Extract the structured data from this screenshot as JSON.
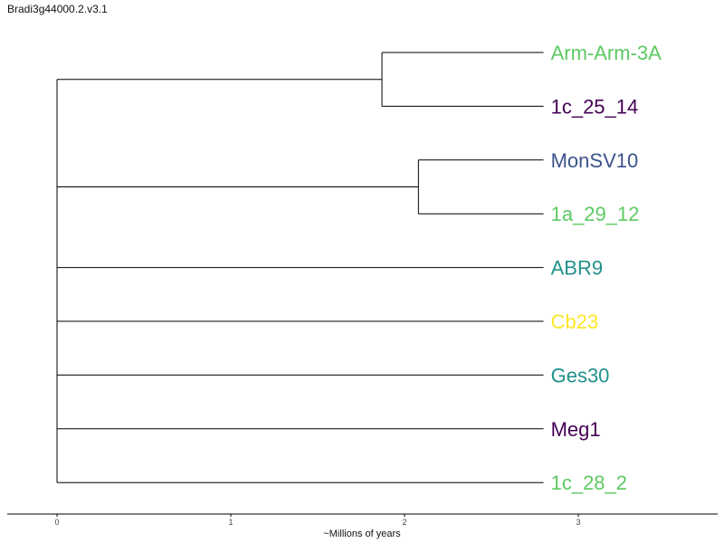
{
  "title": "Bradi3g44000.2.v3.1",
  "chart_data": {
    "type": "dendrogram",
    "xlabel": "~Millions of years",
    "xlim": [
      0,
      3.8
    ],
    "xticks": [
      0,
      1,
      2,
      3
    ],
    "tip_x": 2.8,
    "leaves": [
      {
        "name": "Arm-Arm-3A",
        "color": "#5ec962"
      },
      {
        "name": "1c_25_14",
        "color": "#440154"
      },
      {
        "name": "MonSV10",
        "color": "#3b528b"
      },
      {
        "name": "1a_29_12",
        "color": "#5ec962"
      },
      {
        "name": "ABR9",
        "color": "#21918c"
      },
      {
        "name": "Cb23",
        "color": "#fde725"
      },
      {
        "name": "Ges30",
        "color": "#21918c"
      },
      {
        "name": "Meg1",
        "color": "#440154"
      },
      {
        "name": "1c_28_2",
        "color": "#5ec962"
      }
    ],
    "clades": [
      {
        "members": [
          "Arm-Arm-3A",
          "1c_25_14"
        ],
        "node_age": 1.87
      },
      {
        "members": [
          "MonSV10",
          "1a_29_12"
        ],
        "node_age": 2.08
      }
    ],
    "root_age": 0.0
  }
}
